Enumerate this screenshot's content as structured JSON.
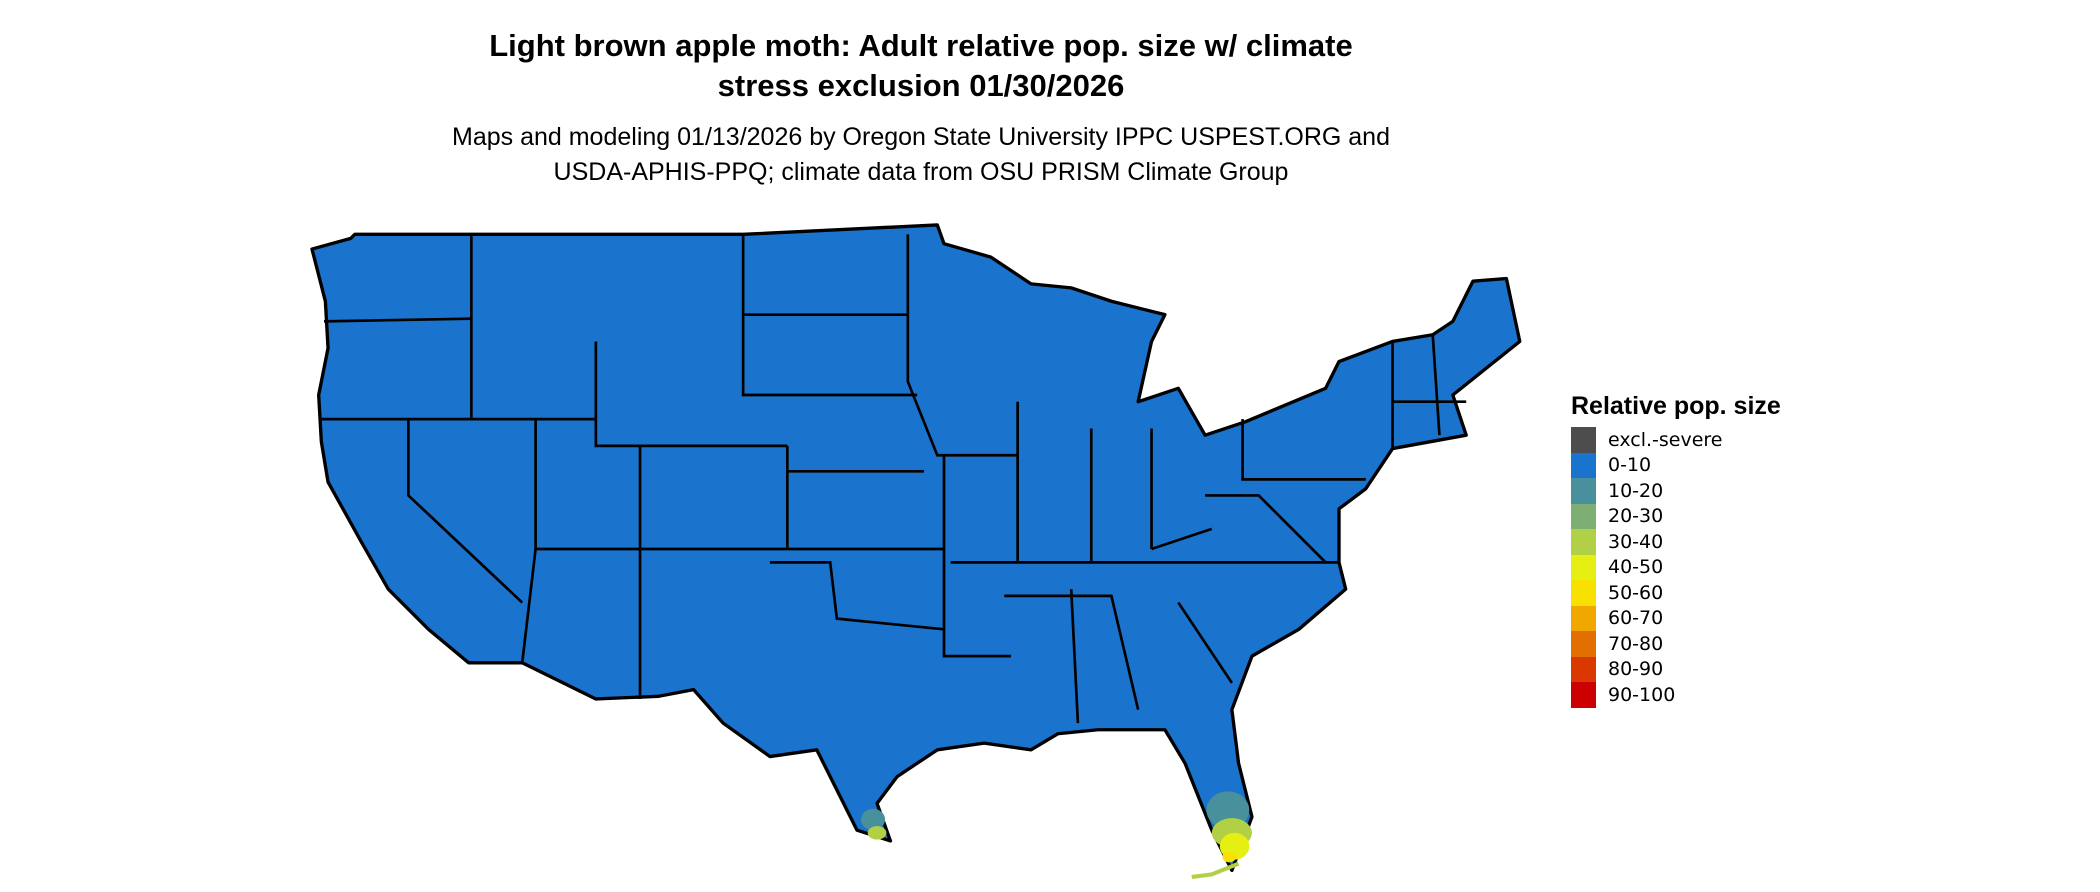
{
  "title_lines": [
    "Light brown apple moth: Adult relative pop. size w/ climate",
    "stress exclusion 01/30/2026"
  ],
  "subtitle_lines": [
    "Maps and modeling 01/13/2026 by Oregon State University IPPC USPEST.ORG and",
    "USDA-APHIS-PPQ; climate data from OSU PRISM Climate Group"
  ],
  "legend": {
    "title": "Relative pop. size",
    "items": [
      {
        "label": "excl.-severe",
        "color": "#4d4d4d"
      },
      {
        "label": "0-10",
        "color": "#1a73cc"
      },
      {
        "label": "10-20",
        "color": "#48909c"
      },
      {
        "label": "20-30",
        "color": "#7daf74"
      },
      {
        "label": "30-40",
        "color": "#b2d045"
      },
      {
        "label": "40-50",
        "color": "#e5f012"
      },
      {
        "label": "50-60",
        "color": "#f8e000"
      },
      {
        "label": "60-70",
        "color": "#f0a800"
      },
      {
        "label": "70-80",
        "color": "#e27000"
      },
      {
        "label": "80-90",
        "color": "#da3800"
      },
      {
        "label": "90-100",
        "color": "#cc0000"
      }
    ]
  },
  "map": {
    "region": "Contiguous United States",
    "dominant_class": "0-10",
    "hotspots": [
      "South Florida: 10-20 to 50-60",
      "South Texas tip: 10-20 to 30-40"
    ]
  }
}
